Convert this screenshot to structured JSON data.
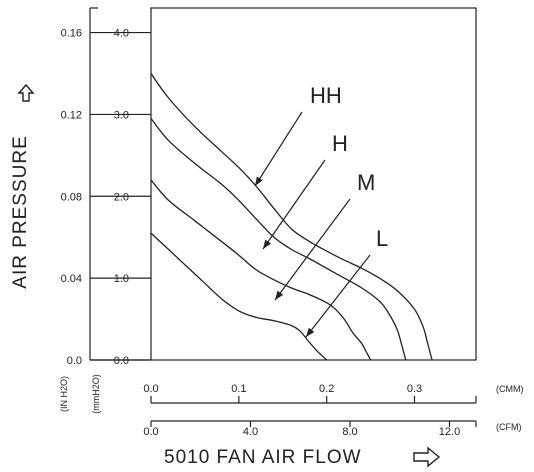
{
  "chart_data": {
    "type": "line",
    "x_units": {
      "primary": "(CMM)",
      "secondary": "(CFM)"
    },
    "y_units": {
      "outer": "(IN H2O)",
      "inner": "(mmH2O)"
    },
    "xlabel": "5010 FAN AIR FLOW",
    "ylabel": "AIR PRESSURE",
    "x_cmm_ticks": [
      "0.0",
      "0.1",
      "0.2",
      "0.3"
    ],
    "x_cfm_ticks": [
      "0.0",
      "4.0",
      "8.0",
      "12.0"
    ],
    "y_inh2o_ticks": [
      "0.0",
      "0.04",
      "0.08",
      "0.12",
      "0.16"
    ],
    "y_mmh2o_ticks": [
      "0.0",
      "1.0",
      "2.0",
      "3.0",
      "4.0"
    ],
    "xlim_cmm": [
      0,
      0.37
    ],
    "ylim_mmh2o": [
      0,
      4.3
    ],
    "grid": false,
    "series": [
      {
        "name": "HH",
        "x": [
          0.0,
          0.02,
          0.05,
          0.08,
          0.1,
          0.12,
          0.14,
          0.16,
          0.18,
          0.2,
          0.22,
          0.24,
          0.26,
          0.28,
          0.3,
          0.31,
          0.315,
          0.32
        ],
        "values": [
          3.5,
          3.2,
          2.85,
          2.55,
          2.35,
          2.12,
          1.85,
          1.6,
          1.45,
          1.33,
          1.22,
          1.12,
          1.0,
          0.85,
          0.62,
          0.4,
          0.2,
          0.0
        ]
      },
      {
        "name": "H",
        "x": [
          0.0,
          0.02,
          0.05,
          0.08,
          0.1,
          0.12,
          0.14,
          0.16,
          0.18,
          0.2,
          0.22,
          0.24,
          0.26,
          0.27,
          0.28,
          0.285,
          0.29
        ],
        "values": [
          2.95,
          2.68,
          2.4,
          2.15,
          1.95,
          1.72,
          1.5,
          1.35,
          1.24,
          1.12,
          1.0,
          0.88,
          0.72,
          0.58,
          0.38,
          0.2,
          0.0
        ]
      },
      {
        "name": "M",
        "x": [
          0.0,
          0.02,
          0.05,
          0.08,
          0.1,
          0.12,
          0.14,
          0.16,
          0.18,
          0.2,
          0.21,
          0.22,
          0.23,
          0.24,
          0.245,
          0.25
        ],
        "values": [
          2.2,
          1.95,
          1.7,
          1.45,
          1.28,
          1.1,
          0.98,
          0.88,
          0.8,
          0.7,
          0.62,
          0.5,
          0.33,
          0.2,
          0.1,
          0.0
        ]
      },
      {
        "name": "L",
        "x": [
          0.0,
          0.02,
          0.04,
          0.06,
          0.08,
          0.1,
          0.12,
          0.14,
          0.16,
          0.17,
          0.18,
          0.19,
          0.195,
          0.2
        ],
        "values": [
          1.55,
          1.35,
          1.15,
          0.95,
          0.75,
          0.6,
          0.52,
          0.48,
          0.42,
          0.35,
          0.22,
          0.1,
          0.05,
          0.0
        ]
      }
    ]
  }
}
